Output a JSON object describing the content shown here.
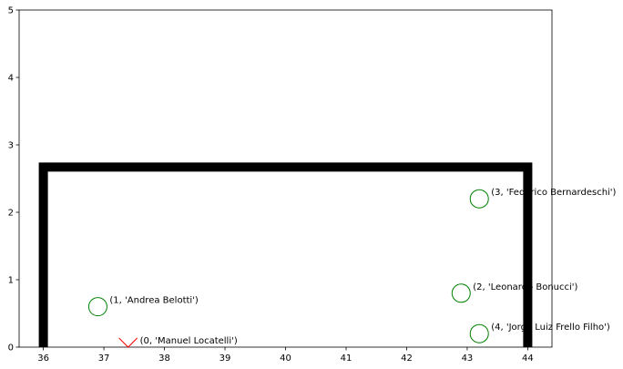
{
  "chart_data": {
    "type": "scatter",
    "title": "",
    "xlabel": "",
    "ylabel": "",
    "xlim": [
      35.6,
      44.4
    ],
    "ylim": [
      0,
      5
    ],
    "xticks": [
      36,
      37,
      38,
      39,
      40,
      41,
      42,
      43,
      44
    ],
    "yticks": [
      0,
      1,
      2,
      3,
      4,
      5
    ],
    "grid": false,
    "goal": {
      "left_post_x": 36,
      "right_post_x": 44,
      "crossbar_y": 2.67,
      "color": "#000000"
    },
    "points": [
      {
        "x": 37.4,
        "y": 0.0,
        "marker": "v",
        "color": "#ff0000",
        "label": "(0, 'Manuel Locatelli')"
      },
      {
        "x": 36.9,
        "y": 0.6,
        "marker": "o",
        "color": "#008000",
        "label": "(1, 'Andrea Belotti')"
      },
      {
        "x": 42.9,
        "y": 0.8,
        "marker": "o",
        "color": "#008000",
        "label": "(2, 'Leonardo Bonucci')"
      },
      {
        "x": 43.2,
        "y": 2.2,
        "marker": "o",
        "color": "#008000",
        "label": "(3, 'Federico Bernardeschi')"
      },
      {
        "x": 43.2,
        "y": 0.2,
        "marker": "o",
        "color": "#008000",
        "label": "(4, 'Jorge Luiz Frello Filho')"
      }
    ]
  }
}
